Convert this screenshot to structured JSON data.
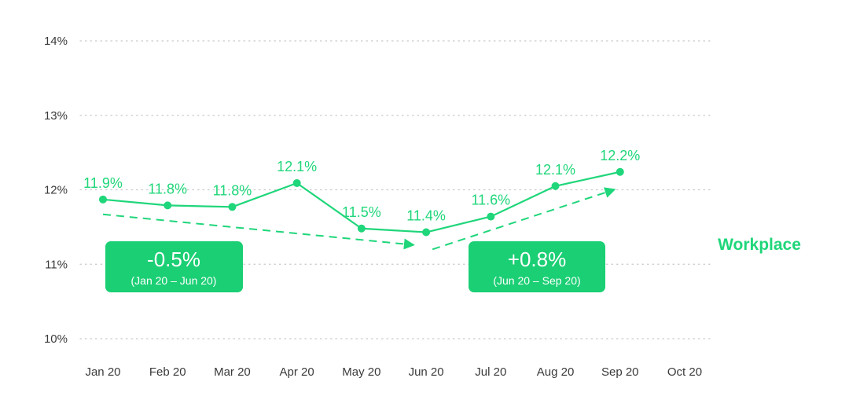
{
  "chart_data": {
    "type": "line",
    "categories": [
      "Jan 20",
      "Feb 20",
      "Mar 20",
      "Apr 20",
      "May 20",
      "Jun 20",
      "Jul 20",
      "Aug 20",
      "Sep 20",
      "Oct 20"
    ],
    "series": [
      {
        "name": "Workplace",
        "values": [
          11.87,
          11.79,
          11.77,
          12.09,
          11.48,
          11.43,
          11.64,
          12.05,
          12.24,
          null
        ],
        "labels": [
          "11.9%",
          "11.8%",
          "11.8%",
          "12.1%",
          "11.5%",
          "11.4%",
          "11.6%",
          "12.1%",
          "12.2%",
          ""
        ],
        "color": "#1fd67a"
      }
    ],
    "y_ticks": [
      "14%",
      "13%",
      "12%",
      "11%",
      "10%"
    ],
    "y_tick_values": [
      14,
      13,
      12,
      11,
      10
    ],
    "ylim": [
      10,
      14
    ],
    "grid": true,
    "grid_style": "dotted",
    "title": "",
    "xlabel": "",
    "ylabel": "",
    "legend": "right",
    "trend_lines": [
      {
        "from_index": 0,
        "to_index": 5,
        "start_value": 11.67,
        "end_value": 11.26,
        "style": "dashed"
      },
      {
        "from_index": 5,
        "to_index": 8,
        "start_value": 11.2,
        "end_value": 12.0,
        "style": "dashed"
      }
    ],
    "annotations": [
      {
        "value": "-0.5%",
        "period": "(Jan 20 – Jun 20)"
      },
      {
        "value": "+0.8%",
        "period": "(Jun 20 – Sep 20)"
      }
    ],
    "colors": {
      "line": "#1fd67a",
      "box": "#1bcf74",
      "grid": "#c9c9c9",
      "axis_text": "#3a3a3a"
    }
  }
}
